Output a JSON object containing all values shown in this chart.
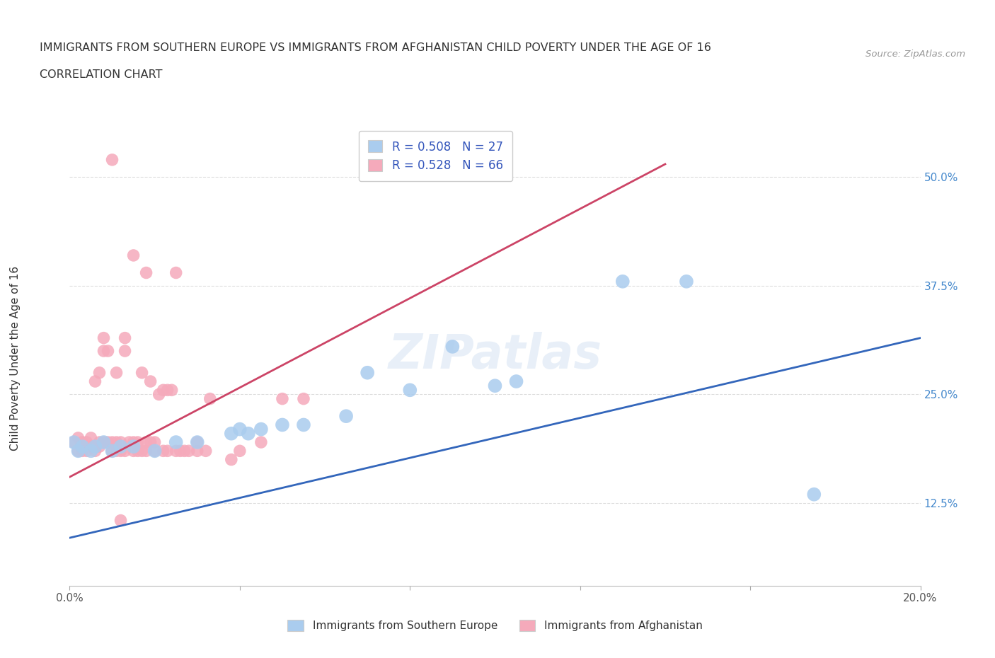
{
  "title": "IMMIGRANTS FROM SOUTHERN EUROPE VS IMMIGRANTS FROM AFGHANISTAN CHILD POVERTY UNDER THE AGE OF 16",
  "subtitle": "CORRELATION CHART",
  "source": "Source: ZipAtlas.com",
  "ylabel": "Child Poverty Under the Age of 16",
  "xlim": [
    0.0,
    0.2
  ],
  "ylim": [
    0.03,
    0.56
  ],
  "ytick_vals": [
    0.125,
    0.25,
    0.375,
    0.5
  ],
  "ytick_labels": [
    "12.5%",
    "25.0%",
    "37.5%",
    "50.0%"
  ],
  "xticks": [
    0.0,
    0.04,
    0.08,
    0.12,
    0.16,
    0.2
  ],
  "xtick_labels": [
    "0.0%",
    "",
    "",
    "",
    "",
    "20.0%"
  ],
  "blue_color": "#aaccee",
  "pink_color": "#f5aabb",
  "blue_line_color": "#3366bb",
  "pink_line_color": "#cc4466",
  "blue_scatter": [
    [
      0.001,
      0.195
    ],
    [
      0.002,
      0.185
    ],
    [
      0.003,
      0.19
    ],
    [
      0.005,
      0.185
    ],
    [
      0.006,
      0.19
    ],
    [
      0.008,
      0.195
    ],
    [
      0.01,
      0.185
    ],
    [
      0.012,
      0.19
    ],
    [
      0.015,
      0.19
    ],
    [
      0.02,
      0.185
    ],
    [
      0.025,
      0.195
    ],
    [
      0.03,
      0.195
    ],
    [
      0.038,
      0.205
    ],
    [
      0.04,
      0.21
    ],
    [
      0.042,
      0.205
    ],
    [
      0.045,
      0.21
    ],
    [
      0.05,
      0.215
    ],
    [
      0.055,
      0.215
    ],
    [
      0.065,
      0.225
    ],
    [
      0.07,
      0.275
    ],
    [
      0.08,
      0.255
    ],
    [
      0.09,
      0.305
    ],
    [
      0.1,
      0.26
    ],
    [
      0.105,
      0.265
    ],
    [
      0.13,
      0.38
    ],
    [
      0.145,
      0.38
    ],
    [
      0.175,
      0.135
    ]
  ],
  "pink_scatter": [
    [
      0.001,
      0.195
    ],
    [
      0.002,
      0.185
    ],
    [
      0.002,
      0.2
    ],
    [
      0.003,
      0.185
    ],
    [
      0.003,
      0.195
    ],
    [
      0.004,
      0.185
    ],
    [
      0.004,
      0.195
    ],
    [
      0.005,
      0.19
    ],
    [
      0.005,
      0.2
    ],
    [
      0.006,
      0.185
    ],
    [
      0.006,
      0.265
    ],
    [
      0.007,
      0.19
    ],
    [
      0.007,
      0.195
    ],
    [
      0.007,
      0.275
    ],
    [
      0.008,
      0.195
    ],
    [
      0.008,
      0.3
    ],
    [
      0.008,
      0.315
    ],
    [
      0.009,
      0.195
    ],
    [
      0.009,
      0.3
    ],
    [
      0.01,
      0.185
    ],
    [
      0.01,
      0.195
    ],
    [
      0.011,
      0.185
    ],
    [
      0.011,
      0.195
    ],
    [
      0.011,
      0.275
    ],
    [
      0.012,
      0.185
    ],
    [
      0.012,
      0.195
    ],
    [
      0.013,
      0.185
    ],
    [
      0.013,
      0.3
    ],
    [
      0.013,
      0.315
    ],
    [
      0.014,
      0.195
    ],
    [
      0.015,
      0.185
    ],
    [
      0.015,
      0.195
    ],
    [
      0.016,
      0.185
    ],
    [
      0.016,
      0.195
    ],
    [
      0.017,
      0.185
    ],
    [
      0.017,
      0.275
    ],
    [
      0.018,
      0.185
    ],
    [
      0.018,
      0.195
    ],
    [
      0.019,
      0.195
    ],
    [
      0.019,
      0.265
    ],
    [
      0.02,
      0.185
    ],
    [
      0.02,
      0.195
    ],
    [
      0.021,
      0.25
    ],
    [
      0.022,
      0.185
    ],
    [
      0.022,
      0.255
    ],
    [
      0.023,
      0.185
    ],
    [
      0.023,
      0.255
    ],
    [
      0.024,
      0.255
    ],
    [
      0.025,
      0.185
    ],
    [
      0.026,
      0.185
    ],
    [
      0.027,
      0.185
    ],
    [
      0.028,
      0.185
    ],
    [
      0.03,
      0.185
    ],
    [
      0.03,
      0.195
    ],
    [
      0.032,
      0.185
    ],
    [
      0.033,
      0.245
    ],
    [
      0.038,
      0.175
    ],
    [
      0.04,
      0.185
    ],
    [
      0.045,
      0.195
    ],
    [
      0.05,
      0.245
    ],
    [
      0.055,
      0.245
    ],
    [
      0.01,
      0.52
    ],
    [
      0.015,
      0.41
    ],
    [
      0.018,
      0.39
    ],
    [
      0.025,
      0.39
    ],
    [
      0.012,
      0.105
    ]
  ],
  "blue_line_x": [
    0.0,
    0.2
  ],
  "blue_line_y": [
    0.085,
    0.315
  ],
  "pink_line_x": [
    0.0,
    0.14
  ],
  "pink_line_y": [
    0.155,
    0.515
  ],
  "watermark_text": "ZIPatlas",
  "background_color": "#ffffff",
  "grid_color": "#dddddd",
  "legend_blue_label": "R = 0.508   N = 27",
  "legend_pink_label": "R = 0.528   N = 66",
  "legend_x_label": "Immigrants from Southern Europe",
  "legend_y_label": "Immigrants from Afghanistan"
}
